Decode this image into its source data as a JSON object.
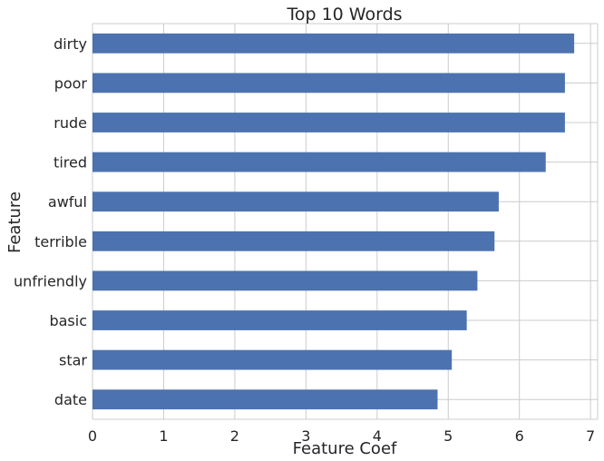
{
  "chart_data": {
    "type": "bar",
    "orientation": "horizontal",
    "title": "Top 10 Words",
    "xlabel": "Feature Coef",
    "ylabel": "Feature",
    "categories": [
      "dirty",
      "poor",
      "rude",
      "tired",
      "awful",
      "terrible",
      "unfriendly",
      "basic",
      "star",
      "date"
    ],
    "values": [
      6.77,
      6.64,
      6.64,
      6.37,
      5.71,
      5.65,
      5.41,
      5.26,
      5.05,
      4.85
    ],
    "xlim": [
      0,
      7.1
    ],
    "xticks": [
      0,
      1,
      2,
      3,
      4,
      5,
      6,
      7
    ],
    "grid": true,
    "legend": "none",
    "colors": {
      "bar": "#4c72b0",
      "grid": "#cccccc",
      "text": "#262626",
      "background": "#ffffff"
    }
  }
}
